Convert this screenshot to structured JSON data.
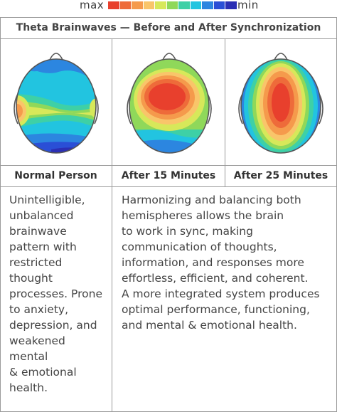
{
  "legend": {
    "max_label": "max",
    "min_label": "min",
    "colors": [
      "#e8402d",
      "#ee6b3a",
      "#f59a4c",
      "#f9c56a",
      "#d7e85a",
      "#8fd85a",
      "#3ed0a6",
      "#22c4e0",
      "#2c86e0",
      "#2a4fd6",
      "#2b2fb4"
    ]
  },
  "table": {
    "title": "Theta Brainwaves — Before and After Synchronization",
    "columns": [
      {
        "label": "Normal Person"
      },
      {
        "label": "After 15 Minutes"
      },
      {
        "label": "After 25 Minutes"
      }
    ],
    "desc_left": "Unintelligible,\nunbalanced\nbrainwave\npattern with\nrestricted\nthought\nprocesses. Prone\nto anxiety,\ndepression, and\nweakened\nmental\n& emotional\nhealth.",
    "desc_right": "Harmonizing and balancing both\nhemispheres allows the brain\nto work in sync, making\ncommunication of thoughts,\ninformation, and responses more\neffortless, efficient, and coherent.\nA more integrated system produces\noptimal performance, functioning,\nand mental & emotional health."
  }
}
